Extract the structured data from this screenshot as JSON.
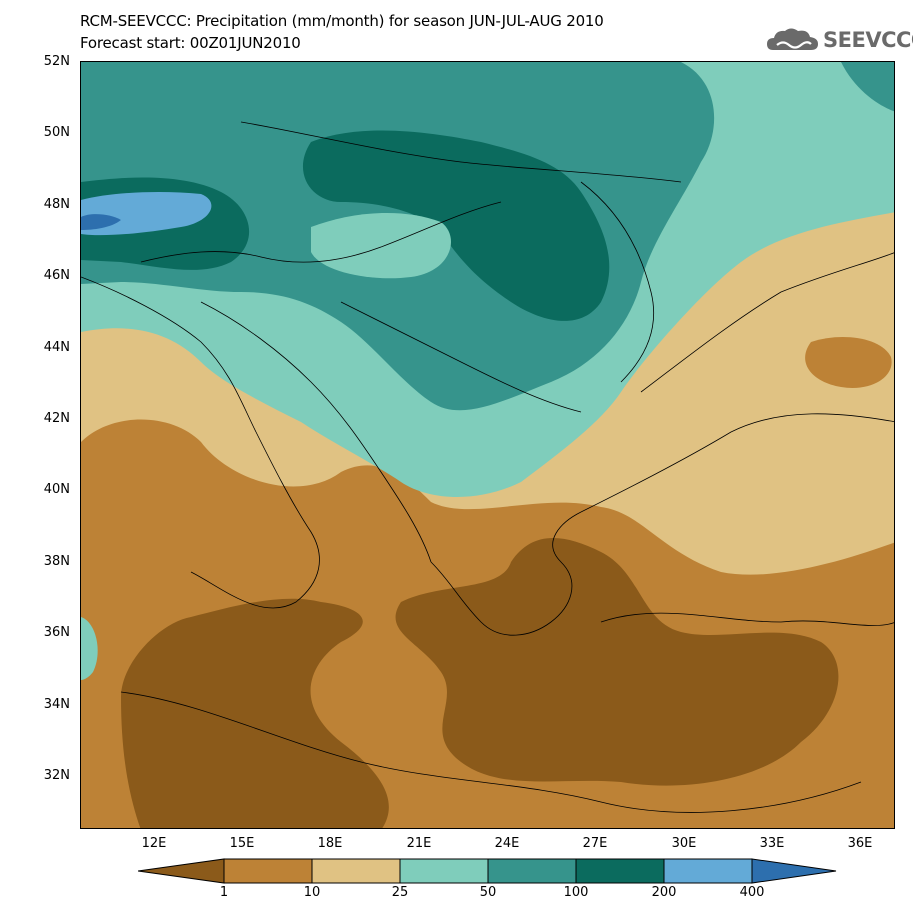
{
  "title_line1": "RCM-SEEVCCC: Precipitation (mm/month) for season JUN-JUL-AUG 2010",
  "title_line2": "Forecast start: 00Z01JUN2010",
  "logo": {
    "text": "SEEVCCC",
    "icon": "cloud-icon",
    "color": "#6a6a6a"
  },
  "map": {
    "lat_labels": [
      "52N",
      "50N",
      "48N",
      "46N",
      "44N",
      "42N",
      "40N",
      "38N",
      "36N",
      "34N",
      "32N"
    ],
    "lon_labels": [
      "12E",
      "15E",
      "18E",
      "21E",
      "24E",
      "27E",
      "30E",
      "33E",
      "36E"
    ],
    "lat_range": [
      30.5,
      52
    ],
    "lon_range": [
      10,
      37.5
    ]
  },
  "legend": {
    "thresholds": [
      "1",
      "10",
      "25",
      "50",
      "100",
      "200",
      "400"
    ],
    "colors": [
      "#8b5a1a",
      "#bd8236",
      "#e0c283",
      "#7fcdbb",
      "#36948c",
      "#0b6b5e",
      "#63aad7",
      "#2d6fae"
    ]
  }
}
